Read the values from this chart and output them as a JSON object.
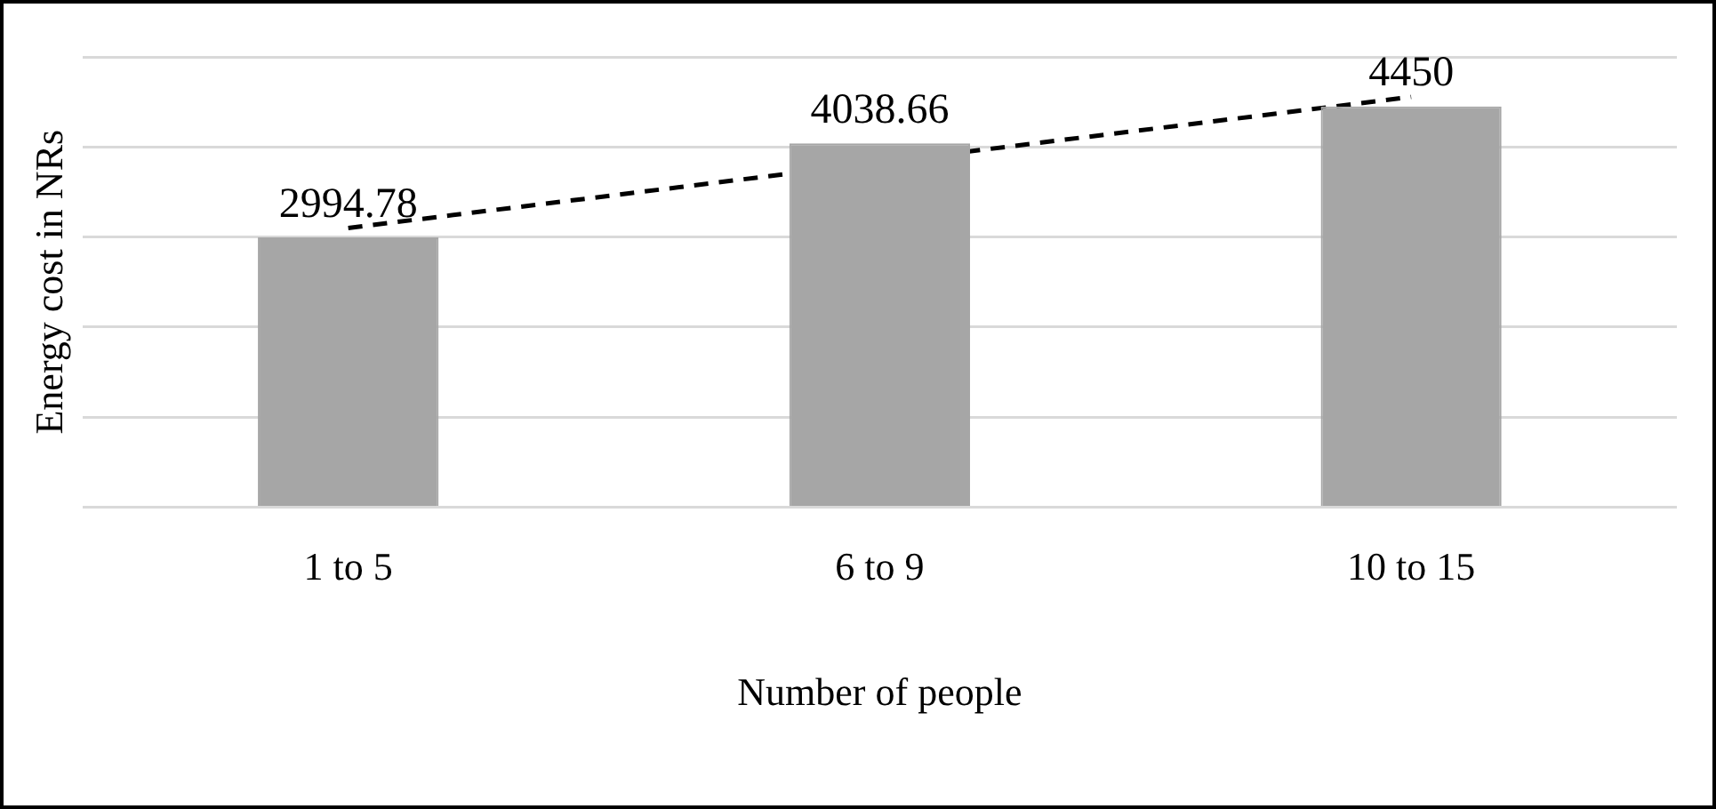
{
  "chart_data": {
    "type": "bar",
    "xlabel": "Number of people",
    "ylabel": "Energy cost in NRs",
    "categories": [
      "1 to 5",
      "6 to 9",
      "10 to 15"
    ],
    "series": [
      {
        "color": "#a6a6a6",
        "values": [
          2994.78,
          4038.66,
          4450
        ],
        "value_labels": [
          "2994.78",
          "4038.66",
          "4450"
        ]
      },
      {
        "type": "line",
        "color": "#000000",
        "x": [
          "1 to 5",
          "10 to 15"
        ],
        "values": [
          3100,
          4555
        ],
        "line_style": "dashed",
        "marker": "none"
      }
    ],
    "ylim": [
      0,
      5000
    ],
    "yticks": [
      {
        "value": 0,
        "label": null
      },
      {
        "value": 1000,
        "label": null
      },
      {
        "value": 2000,
        "label": null
      },
      {
        "value": 3000,
        "label": null
      },
      {
        "value": 4000,
        "label": null
      },
      {
        "value": 5000,
        "label": null
      }
    ],
    "tick_labels": "x",
    "grid": "y",
    "legend": false
  }
}
